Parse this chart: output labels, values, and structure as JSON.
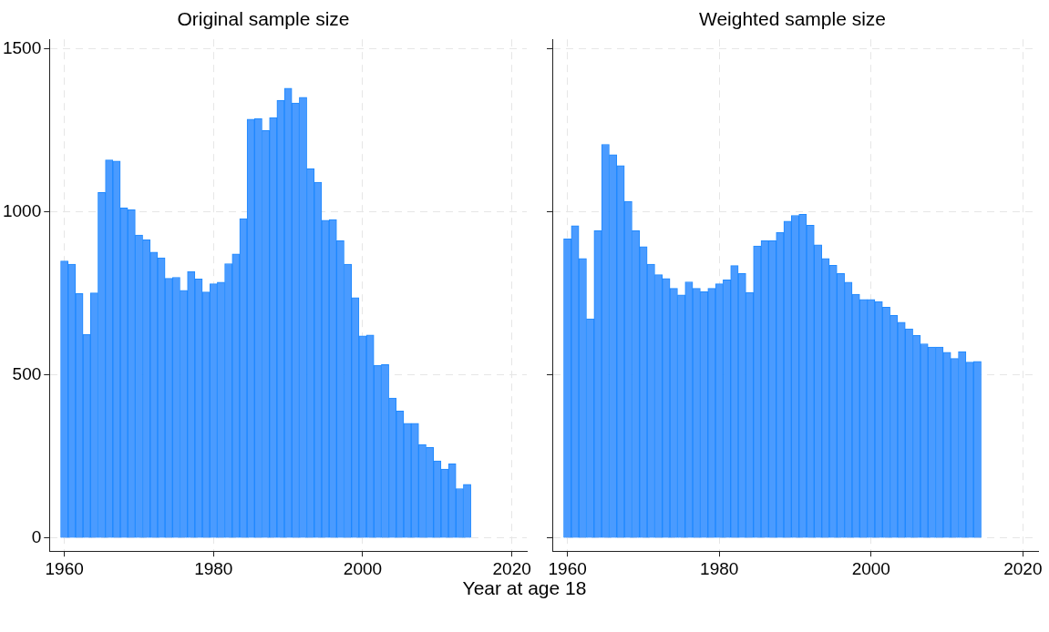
{
  "chart_data": [
    {
      "type": "histogram",
      "title": "Original sample size",
      "xlabel": "Year at age 18",
      "color": "#4a9bff",
      "bins": [
        1959.5,
        1960.5,
        1961.5,
        1962.5,
        1963.5,
        1964.5,
        1965.5,
        1966.5,
        1967.5,
        1968.5,
        1969.5,
        1970.5,
        1971.5,
        1972.5,
        1973.5,
        1974.5,
        1975.5,
        1976.5,
        1977.5,
        1978.5,
        1979.5,
        1980.5,
        1981.5,
        1982.5,
        1983.5,
        1984.5,
        1985.5,
        1986.5,
        1987.5,
        1988.5,
        1989.5,
        1990.5,
        1991.5,
        1992.5,
        1993.5,
        1994.5,
        1995.5,
        1996.5,
        1997.5,
        1998.5,
        1999.5,
        2000.5,
        2001.5,
        2002.5,
        2003.5,
        2004.5,
        2005.5,
        2006.5,
        2007.5,
        2008.5,
        2009.5,
        2010.5,
        2011.5,
        2012.5,
        2013.5,
        2014.5
      ],
      "values": [
        850,
        840,
        750,
        625,
        752,
        1060,
        1160,
        1157,
        1013,
        1007,
        930,
        915,
        877,
        860,
        797,
        800,
        760,
        818,
        795,
        755,
        780,
        785,
        842,
        872,
        980,
        1285,
        1287,
        1250,
        1290,
        1343,
        1380,
        1335,
        1352,
        1133,
        1092,
        975,
        977,
        912,
        840,
        738,
        620,
        623,
        530,
        532,
        430,
        390,
        352,
        352,
        287,
        278,
        237,
        212,
        228,
        152,
        165
      ],
      "xlim": [
        1958,
        2022
      ],
      "xticks": [
        1960,
        1980,
        2000,
        2020
      ],
      "ylim": [
        -40,
        1530
      ],
      "yticks": [
        0,
        500,
        1000,
        1500
      ],
      "grid": true
    },
    {
      "type": "histogram",
      "title": "Weighted sample size",
      "color": "#4a9bff",
      "bins": [
        1959.5,
        1960.5,
        1961.5,
        1962.5,
        1963.5,
        1964.5,
        1965.5,
        1966.5,
        1967.5,
        1968.5,
        1969.5,
        1970.5,
        1971.5,
        1972.5,
        1973.5,
        1974.5,
        1975.5,
        1976.5,
        1977.5,
        1978.5,
        1979.5,
        1980.5,
        1981.5,
        1982.5,
        1983.5,
        1984.5,
        1985.5,
        1986.5,
        1987.5,
        1988.5,
        1989.5,
        1990.5,
        1991.5,
        1992.5,
        1993.5,
        1994.5,
        1995.5,
        1996.5,
        1997.5,
        1998.5,
        1999.5,
        2000.5,
        2001.5,
        2002.5,
        2003.5,
        2004.5,
        2005.5,
        2006.5,
        2007.5,
        2008.5,
        2009.5,
        2010.5,
        2011.5,
        2012.5,
        2013.5,
        2014.5
      ],
      "values": [
        918,
        958,
        858,
        673,
        943,
        1208,
        1176,
        1143,
        1033,
        943,
        894,
        840,
        808,
        796,
        766,
        746,
        786,
        766,
        756,
        766,
        780,
        792,
        836,
        812,
        754,
        896,
        912,
        912,
        938,
        972,
        990,
        993,
        960,
        900,
        858,
        837,
        812,
        785,
        748,
        732,
        732,
        726,
        708,
        683,
        662,
        642,
        622,
        596,
        586,
        586,
        570,
        551,
        572,
        540,
        542
      ],
      "xlim": [
        1958,
        2022
      ],
      "xticks": [
        1960,
        1980,
        2000,
        2020
      ],
      "ylim": [
        -40,
        1530
      ],
      "yticks": [
        0,
        500,
        1000,
        1500
      ],
      "grid": true,
      "tick_labels": "x"
    }
  ]
}
